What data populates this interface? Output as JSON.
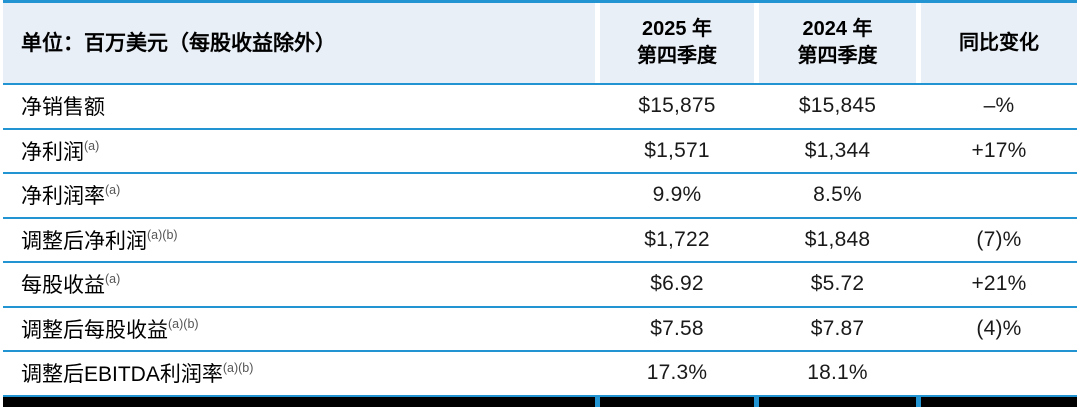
{
  "colors": {
    "accent_blue": "#2394d2",
    "header_bg": "#e9eff6",
    "bottom_bar_black": "#000000",
    "text_black": "#000000",
    "footnote_gray": "#555555"
  },
  "table": {
    "unit_header": "单位：百万美元（每股收益除外）",
    "col_headers": [
      {
        "line1": "2025 年",
        "line2": "第四季度"
      },
      {
        "line1": "2024 年",
        "line2": "第四季度"
      },
      {
        "line1": "同比变化",
        "line2": ""
      }
    ],
    "rows": [
      {
        "label": "净销售额",
        "sup": "",
        "q4_2025": "$15,875",
        "q4_2024": "$15,845",
        "yoy": "–%"
      },
      {
        "label": "净利润",
        "sup": "(a)",
        "q4_2025": "$1,571",
        "q4_2024": "$1,344",
        "yoy": "+17%"
      },
      {
        "label": "净利润率",
        "sup": "(a)",
        "q4_2025": "9.9%",
        "q4_2024": "8.5%",
        "yoy": ""
      },
      {
        "label": "调整后净利润",
        "sup": "(a)(b)",
        "q4_2025": "$1,722",
        "q4_2024": "$1,848",
        "yoy": "(7)%"
      },
      {
        "label": "每股收益",
        "sup": "(a)",
        "q4_2025": "$6.92",
        "q4_2024": "$5.72",
        "yoy": "+21%"
      },
      {
        "label": "调整后每股收益",
        "sup": "(a)(b)",
        "q4_2025": "$7.58",
        "q4_2024": "$7.87",
        "yoy": "(4)%"
      },
      {
        "label": "调整后EBITDA利润率",
        "sup": "(a)(b)",
        "q4_2025": "17.3%",
        "q4_2024": "18.1%",
        "yoy": ""
      }
    ]
  },
  "chart_data": {
    "type": "table",
    "title": "单位：百万美元（每股收益除外）",
    "columns": [
      "单位：百万美元（每股收益除外）",
      "2025 年第四季度",
      "2024 年第四季度",
      "同比变化"
    ],
    "rows": [
      [
        "净销售额",
        "$15,875",
        "$15,845",
        "–%"
      ],
      [
        "净利润(a)",
        "$1,571",
        "$1,344",
        "+17%"
      ],
      [
        "净利润率(a)",
        "9.9%",
        "8.5%",
        ""
      ],
      [
        "调整后净利润(a)(b)",
        "$1,722",
        "$1,848",
        "(7)%"
      ],
      [
        "每股收益(a)",
        "$6.92",
        "$5.72",
        "+21%"
      ],
      [
        "调整后每股收益(a)(b)",
        "$7.58",
        "$7.87",
        "(4)%"
      ],
      [
        "调整后EBITDA利润率(a)(b)",
        "17.3%",
        "18.1%",
        ""
      ]
    ],
    "footnote_markers": [
      "(a)",
      "(b)"
    ],
    "layout": {
      "header_background": "#e9eff6",
      "rule_color": "#2394d2",
      "bottom_bar_color": "#000000",
      "value_alignment": "center",
      "label_alignment": "left"
    }
  }
}
